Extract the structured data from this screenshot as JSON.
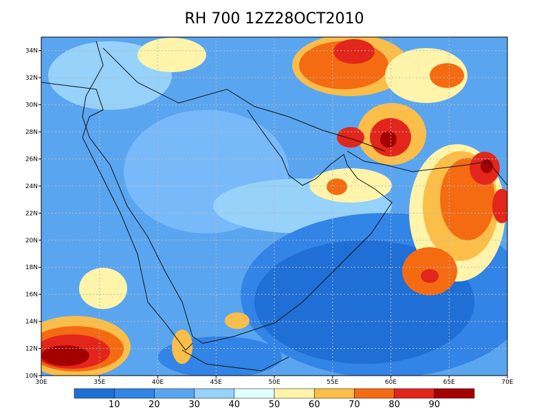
{
  "title": "RH 700 12Z28OCT2010",
  "map": {
    "lon_ticks": [
      {
        "value": 30,
        "label": "30E"
      },
      {
        "value": 35,
        "label": "35E"
      },
      {
        "value": 40,
        "label": "40E"
      },
      {
        "value": 45,
        "label": "45E"
      },
      {
        "value": 50,
        "label": "50E"
      },
      {
        "value": 55,
        "label": "55E"
      },
      {
        "value": 60,
        "label": "60E"
      },
      {
        "value": 65,
        "label": "65E"
      },
      {
        "value": 70,
        "label": "70E"
      }
    ],
    "lat_ticks": [
      {
        "value": 10,
        "label": "10N"
      },
      {
        "value": 12,
        "label": "12N"
      },
      {
        "value": 14,
        "label": "14N"
      },
      {
        "value": 16,
        "label": "16N"
      },
      {
        "value": 18,
        "label": "18N"
      },
      {
        "value": 20,
        "label": "20N"
      },
      {
        "value": 22,
        "label": "22N"
      },
      {
        "value": 24,
        "label": "24N"
      },
      {
        "value": 26,
        "label": "26N"
      },
      {
        "value": 28,
        "label": "28N"
      },
      {
        "value": 30,
        "label": "30N"
      },
      {
        "value": 32,
        "label": "32N"
      },
      {
        "value": 34,
        "label": "34N"
      }
    ]
  },
  "colorbar": {
    "labels": [
      10,
      20,
      30,
      40,
      50,
      60,
      70,
      80,
      90
    ],
    "colors": [
      "#1f6fd6",
      "#3284e6",
      "#5aa5f0",
      "#96d2fa",
      "#e1ffff",
      "#fff4aa",
      "#fbbe48",
      "#f46b12",
      "#e3261b",
      "#a50000"
    ]
  }
}
